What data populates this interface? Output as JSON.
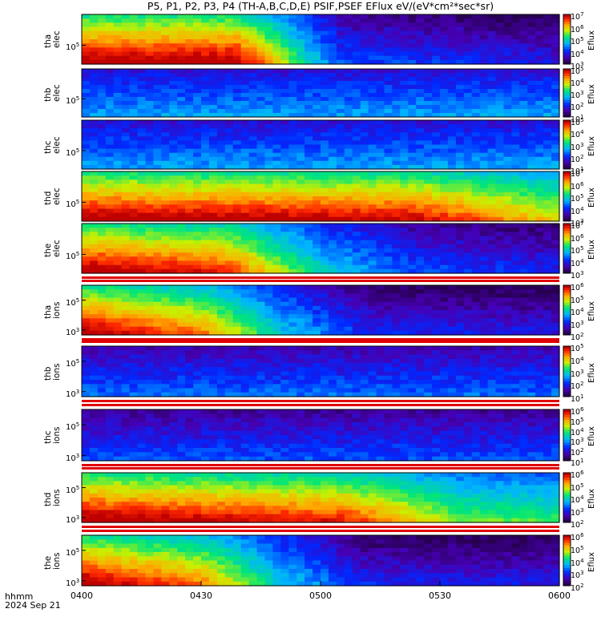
{
  "title": "P5, P1, P2, P3, P4 (TH-A,B,C,D,E) PSIF,PSEF EFlux eV/(eV*cm²*sec*sr)",
  "footer": {
    "line1": "hhmm",
    "line2": "2024 Sep 21"
  },
  "colorbar_label": "Eflux",
  "chart_data": {
    "type": "heatmap",
    "title": "P5, P1, P2, P3, P4 (TH-A,B,C,D,E) PSIF,PSEF EFlux eV/(eV*cm²*sec*sr)",
    "x_axis": {
      "ticks": [
        "0400",
        "0430",
        "0500",
        "0530",
        "0600"
      ],
      "range": [
        "0400",
        "0600"
      ],
      "label": "hhmm",
      "date": "2024 Sep 21"
    },
    "colormap": "rainbow",
    "panels": [
      {
        "label_lines": [
          "tha",
          "elec"
        ],
        "yticks": [
          "10^5"
        ],
        "cb_ticks": [
          "10^7",
          "10^6",
          "10^5",
          "10^4",
          "10^3"
        ],
        "cb_label": "Eflux",
        "profile": [
          [
            0,
            1
          ],
          [
            0.32,
            1
          ],
          [
            0.45,
            0.55
          ],
          [
            0.55,
            0.15
          ],
          [
            1,
            0
          ]
        ]
      },
      {
        "label_lines": [
          "thb",
          "elec"
        ],
        "yticks": [
          "10^5"
        ],
        "cb_ticks": [
          "10^5",
          "10^4",
          "10^3",
          "10^2",
          "10^1"
        ],
        "cb_label": "Eflux",
        "profile": [
          [
            0,
            0.3
          ],
          [
            1,
            0.3
          ]
        ]
      },
      {
        "label_lines": [
          "thc",
          "elec"
        ],
        "yticks": [
          "10^5"
        ],
        "cb_ticks": [
          "10^5",
          "10^4",
          "10^3",
          "10^2",
          "10^1"
        ],
        "cb_label": "Eflux",
        "profile": [
          [
            0,
            0.3
          ],
          [
            1,
            0.3
          ]
        ]
      },
      {
        "label_lines": [
          "thd",
          "elec"
        ],
        "yticks": [
          "10^5"
        ],
        "cb_ticks": [
          "10^7",
          "10^6",
          "10^5",
          "10^4",
          "10^3"
        ],
        "cb_label": "Eflux",
        "profile": [
          [
            0,
            1
          ],
          [
            0.7,
            0.95
          ],
          [
            1,
            0.7
          ]
        ]
      },
      {
        "label_lines": [
          "the",
          "elec"
        ],
        "yticks": [
          "10^5"
        ],
        "cb_ticks": [
          "10^7",
          "10^6",
          "10^5",
          "10^4",
          "10^3"
        ],
        "cb_label": "Eflux",
        "profile": [
          [
            0,
            1
          ],
          [
            0.3,
            0.9
          ],
          [
            0.5,
            0.45
          ],
          [
            0.7,
            0.15
          ],
          [
            1,
            0.05
          ]
        ]
      },
      {
        "label_lines": [
          "tha",
          "ions"
        ],
        "yticks": [
          "10^5",
          "10^3"
        ],
        "cb_ticks": [
          "10^6",
          "10^5",
          "10^4",
          "10^3",
          "10^2"
        ],
        "cb_label": "Eflux",
        "profile": [
          [
            0,
            1
          ],
          [
            0.25,
            0.8
          ],
          [
            0.45,
            0.35
          ],
          [
            0.6,
            0.05
          ],
          [
            1,
            0
          ]
        ]
      },
      {
        "label_lines": [
          "thb",
          "ions"
        ],
        "yticks": [
          "10^5",
          "10^3"
        ],
        "cb_ticks": [
          "10^5",
          "10^4",
          "10^3",
          "10^2",
          "10^1"
        ],
        "cb_label": "Eflux",
        "profile": [
          [
            0,
            0.2
          ],
          [
            1,
            0.2
          ]
        ]
      },
      {
        "label_lines": [
          "thc",
          "ions"
        ],
        "yticks": [
          "10^5",
          "10^3"
        ],
        "cb_ticks": [
          "10^6",
          "10^5",
          "10^4",
          "10^3",
          "10^2",
          "10^1"
        ],
        "cb_label": "Eflux",
        "profile": [
          [
            0,
            0.15
          ],
          [
            1,
            0.15
          ]
        ]
      },
      {
        "label_lines": [
          "thd",
          "ions"
        ],
        "yticks": [
          "10^5",
          "10^3"
        ],
        "cb_ticks": [
          "10^6",
          "10^5",
          "10^4",
          "10^3",
          "10^2"
        ],
        "cb_label": "Eflux",
        "profile": [
          [
            0,
            1
          ],
          [
            0.55,
            0.9
          ],
          [
            0.8,
            0.6
          ],
          [
            1,
            0.55
          ]
        ]
      },
      {
        "label_lines": [
          "the",
          "ions"
        ],
        "yticks": [
          "10^5",
          "10^3"
        ],
        "cb_ticks": [
          "10^6",
          "10^5",
          "10^4",
          "10^3",
          "10^2"
        ],
        "cb_label": "Eflux",
        "profile": [
          [
            0,
            1
          ],
          [
            0.25,
            0.8
          ],
          [
            0.45,
            0.35
          ],
          [
            0.6,
            0.05
          ],
          [
            1,
            0
          ]
        ]
      }
    ]
  }
}
